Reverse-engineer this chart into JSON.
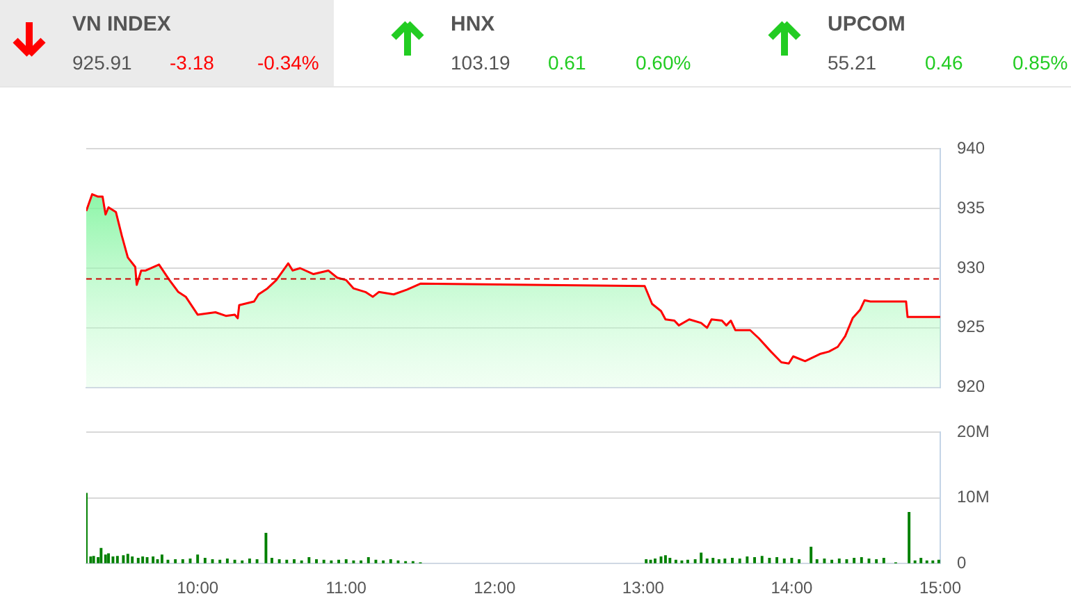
{
  "chart_data": [
    {
      "type": "other",
      "annotations": [
        "VN INDEX",
        "925.91",
        "-3.18",
        "-0.34%",
        "HNX",
        "103.19",
        "0.61",
        "0.60%",
        "UPCOM",
        "55.21",
        "0.46",
        "0.85%"
      ]
    },
    {
      "type": "area",
      "x": [
        9.25,
        9.29,
        9.33,
        9.36,
        9.38,
        9.4,
        9.45,
        9.49,
        9.53,
        9.58,
        9.59,
        9.62,
        9.65,
        9.74,
        9.81,
        9.87,
        9.92,
        10.0,
        10.12,
        10.19,
        10.25,
        10.27,
        10.28,
        10.38,
        10.41,
        10.47,
        10.53,
        10.61,
        10.64,
        10.69,
        10.78,
        10.88,
        10.94,
        11.0,
        11.05,
        11.13,
        11.18,
        11.22,
        11.32,
        11.41,
        11.5,
        12.24,
        13.01,
        13.06,
        13.12,
        13.15,
        13.21,
        13.24,
        13.31,
        13.39,
        13.43,
        13.46,
        13.53,
        13.56,
        13.59,
        13.62,
        13.72,
        13.78,
        13.86,
        13.93,
        13.98,
        14.01,
        14.09,
        14.19,
        14.25,
        14.31,
        14.36,
        14.41,
        14.46,
        14.49,
        14.53,
        14.77,
        14.78,
        15.0
      ],
      "series": [
        {
          "color": "#ff0000",
          "values": [
            934.8,
            936.2,
            936.0,
            936.0,
            934.5,
            935.1,
            934.7,
            932.7,
            930.9,
            930.1,
            928.6,
            929.8,
            929.8,
            930.3,
            929.0,
            928.0,
            927.6,
            926.1,
            926.3,
            926.0,
            926.1,
            925.8,
            926.9,
            927.2,
            927.8,
            928.3,
            929.0,
            930.4,
            929.8,
            930.0,
            929.5,
            929.8,
            929.2,
            929.0,
            928.3,
            928.0,
            927.6,
            928.0,
            927.8,
            928.2,
            928.7,
            928.6,
            928.5,
            927.0,
            926.4,
            925.7,
            925.6,
            925.2,
            925.7,
            925.4,
            925.0,
            925.7,
            925.6,
            925.2,
            925.6,
            924.8,
            924.8,
            924.1,
            923.0,
            922.1,
            922.0,
            922.6,
            922.2,
            922.8,
            923.0,
            923.4,
            924.3,
            925.8,
            926.5,
            927.3,
            927.2,
            927.2,
            925.9,
            925.9
          ]
        }
      ],
      "xlim": [
        9.25,
        15
      ],
      "ylim": [
        920,
        940
      ],
      "yticks": [
        920,
        925,
        930,
        935,
        940
      ],
      "grid": "y",
      "tick_labels": "y",
      "ref_lines": [
        {
          "axis": "y",
          "value": 929.1,
          "color": "#cc0000",
          "line_style": "dashed"
        }
      ]
    },
    {
      "type": "bar",
      "color": "#008000",
      "x": [
        9.25,
        9.28,
        9.3,
        9.33,
        9.35,
        9.38,
        9.4,
        9.43,
        9.46,
        9.5,
        9.53,
        9.56,
        9.6,
        9.63,
        9.66,
        9.7,
        9.73,
        9.76,
        9.8,
        9.85,
        9.9,
        9.95,
        10.0,
        10.05,
        10.1,
        10.15,
        10.2,
        10.25,
        10.3,
        10.35,
        10.4,
        10.46,
        10.5,
        10.55,
        10.6,
        10.65,
        10.7,
        10.75,
        10.8,
        10.85,
        10.9,
        10.95,
        11.0,
        11.05,
        11.1,
        11.15,
        11.2,
        11.25,
        11.3,
        11.35,
        11.4,
        11.45,
        11.5,
        13.02,
        13.05,
        13.08,
        13.12,
        13.15,
        13.18,
        13.22,
        13.26,
        13.3,
        13.35,
        13.39,
        13.43,
        13.47,
        13.51,
        13.55,
        13.6,
        13.65,
        13.7,
        13.75,
        13.8,
        13.85,
        13.9,
        13.95,
        14.0,
        14.05,
        14.13,
        14.17,
        14.22,
        14.27,
        14.32,
        14.37,
        14.42,
        14.47,
        14.52,
        14.57,
        14.62,
        14.7,
        14.79,
        14.83,
        14.87,
        14.91,
        14.95,
        14.99
      ],
      "values": [
        10.7,
        1.0,
        1.1,
        0.9,
        2.3,
        1.3,
        1.5,
        1.0,
        1.1,
        1.2,
        1.4,
        1.0,
        0.8,
        1.0,
        0.9,
        1.0,
        0.6,
        1.3,
        0.5,
        0.6,
        0.6,
        0.7,
        1.3,
        0.8,
        0.6,
        0.5,
        0.7,
        0.5,
        0.4,
        0.7,
        0.6,
        4.6,
        0.8,
        0.6,
        0.5,
        0.6,
        0.4,
        0.9,
        0.6,
        0.5,
        0.4,
        0.5,
        0.6,
        0.4,
        0.4,
        0.9,
        0.5,
        0.4,
        0.6,
        0.4,
        0.3,
        0.3,
        0.1,
        0.6,
        0.5,
        0.7,
        1.0,
        1.2,
        0.8,
        0.5,
        0.4,
        0.5,
        0.6,
        1.6,
        0.7,
        0.8,
        0.6,
        0.7,
        0.8,
        0.7,
        1.0,
        0.9,
        1.1,
        0.8,
        0.9,
        0.7,
        0.8,
        0.6,
        2.5,
        0.6,
        0.7,
        0.5,
        0.7,
        0.6,
        0.8,
        0.9,
        0.7,
        0.6,
        0.8,
        0.1,
        7.8,
        0.4,
        0.8,
        0.4,
        0.4,
        0.5
      ],
      "xlim": [
        9.25,
        15
      ],
      "xticks": [
        {
          "value": 10,
          "label": "10:00"
        },
        {
          "value": 11,
          "label": "11:00"
        },
        {
          "value": 12,
          "label": "12:00"
        },
        {
          "value": 13,
          "label": "13:00"
        },
        {
          "value": 14,
          "label": "14:00"
        },
        {
          "value": 15,
          "label": "15:00"
        }
      ],
      "ylim": [
        0,
        20
      ],
      "yticks": [
        {
          "value": 0,
          "label": "0"
        },
        {
          "value": 10,
          "label": "10M"
        },
        {
          "value": 20,
          "label": "20M"
        }
      ],
      "grid": "y"
    }
  ]
}
